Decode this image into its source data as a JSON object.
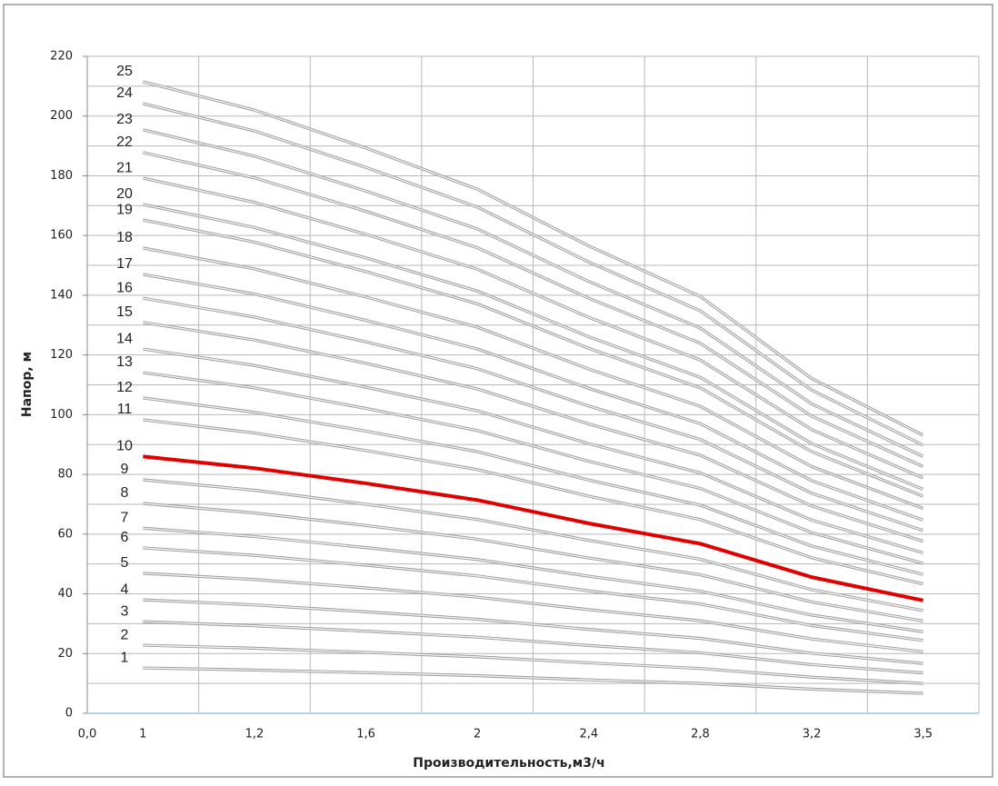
{
  "chart_data": {
    "type": "line",
    "x_label": "Производительность,м3/ч",
    "y_label": "Напор, м",
    "x_origin_label": "0,0",
    "categories": [
      "1",
      "1,2",
      "1,6",
      "2",
      "2,4",
      "2,8",
      "3,2",
      "3,5"
    ],
    "ylim": [
      0,
      220
    ],
    "yticks": [
      0,
      20,
      40,
      60,
      80,
      100,
      120,
      140,
      160,
      180,
      200,
      220
    ],
    "yminorticks": [
      10,
      30,
      50,
      70,
      90,
      110,
      130,
      150,
      170,
      190,
      210
    ],
    "grid": true,
    "series": [
      {
        "name": "1",
        "color": "#9a9a9a",
        "values": [
          15.2,
          14.5,
          13.6,
          12.6,
          11.2,
          10.0,
          8.1,
          6.7
        ]
      },
      {
        "name": "2",
        "color": "#9a9a9a",
        "values": [
          22.8,
          21.8,
          20.4,
          18.9,
          16.9,
          15.0,
          12.1,
          10.0
        ]
      },
      {
        "name": "3",
        "color": "#9a9a9a",
        "values": [
          30.7,
          29.3,
          27.5,
          25.5,
          22.7,
          20.3,
          16.3,
          13.5
        ]
      },
      {
        "name": "4",
        "color": "#9a9a9a",
        "values": [
          38.0,
          36.3,
          34.0,
          31.5,
          28.1,
          25.1,
          20.1,
          16.7
        ]
      },
      {
        "name": "5",
        "color": "#9a9a9a",
        "values": [
          46.9,
          44.8,
          42.0,
          38.9,
          34.7,
          31.0,
          24.9,
          20.6
        ]
      },
      {
        "name": "6",
        "color": "#9a9a9a",
        "values": [
          55.4,
          52.9,
          49.6,
          46.0,
          41.0,
          36.6,
          29.4,
          24.4
        ]
      },
      {
        "name": "7",
        "color": "#9a9a9a",
        "values": [
          62.0,
          59.2,
          55.5,
          51.5,
          45.9,
          40.9,
          32.9,
          27.3
        ]
      },
      {
        "name": "8",
        "color": "#9a9a9a",
        "values": [
          70.3,
          67.1,
          62.9,
          58.3,
          52.0,
          46.4,
          37.3,
          30.9
        ]
      },
      {
        "name": "9",
        "color": "#9a9a9a",
        "values": [
          78.2,
          74.7,
          70.0,
          64.9,
          57.9,
          51.6,
          41.4,
          34.4
        ]
      },
      {
        "name": "10",
        "color": "#e00000",
        "values": [
          86.0,
          82.1,
          77.0,
          71.4,
          63.6,
          56.8,
          45.6,
          37.8
        ]
      },
      {
        "name": "11",
        "color": "#9a9a9a",
        "values": [
          98.3,
          93.9,
          88.0,
          81.6,
          72.7,
          64.9,
          52.1,
          43.3
        ]
      },
      {
        "name": "12",
        "color": "#9a9a9a",
        "values": [
          105.6,
          100.8,
          94.5,
          87.6,
          78.1,
          69.7,
          56.0,
          46.5
        ]
      },
      {
        "name": "13",
        "color": "#9a9a9a",
        "values": [
          114.1,
          109.0,
          102.1,
          94.7,
          84.4,
          75.3,
          60.5,
          50.2
        ]
      },
      {
        "name": "14",
        "color": "#9a9a9a",
        "values": [
          122.0,
          116.5,
          109.2,
          101.3,
          90.3,
          80.5,
          64.7,
          53.7
        ]
      },
      {
        "name": "15",
        "color": "#9a9a9a",
        "values": [
          130.9,
          125.0,
          117.2,
          108.6,
          96.9,
          86.4,
          69.4,
          57.6
        ]
      },
      {
        "name": "16",
        "color": "#9a9a9a",
        "values": [
          139.0,
          132.7,
          124.4,
          115.4,
          102.9,
          91.7,
          73.7,
          61.2
        ]
      },
      {
        "name": "17",
        "color": "#9a9a9a",
        "values": [
          147.0,
          140.4,
          131.6,
          122.0,
          108.8,
          97.0,
          77.9,
          64.7
        ]
      },
      {
        "name": "18",
        "color": "#9a9a9a",
        "values": [
          155.8,
          148.8,
          139.4,
          129.3,
          115.3,
          102.8,
          82.6,
          68.6
        ]
      },
      {
        "name": "19",
        "color": "#9a9a9a",
        "values": [
          165.2,
          157.8,
          147.9,
          137.1,
          122.2,
          109.0,
          87.6,
          72.7
        ]
      },
      {
        "name": "20",
        "color": "#9a9a9a",
        "values": [
          170.4,
          162.7,
          152.5,
          141.4,
          126.1,
          112.5,
          90.3,
          75.0
        ]
      },
      {
        "name": "21",
        "color": "#9a9a9a",
        "values": [
          179.2,
          171.1,
          160.4,
          148.7,
          132.6,
          118.3,
          95.0,
          78.8
        ]
      },
      {
        "name": "22",
        "color": "#9a9a9a",
        "values": [
          187.8,
          179.3,
          168.1,
          155.9,
          139.0,
          123.9,
          99.5,
          82.6
        ]
      },
      {
        "name": "23",
        "color": "#9a9a9a",
        "values": [
          195.4,
          186.6,
          174.9,
          162.2,
          144.6,
          129.0,
          103.6,
          86.0
        ]
      },
      {
        "name": "24",
        "color": "#9a9a9a",
        "values": [
          204.2,
          195.0,
          182.8,
          169.5,
          151.1,
          134.8,
          108.2,
          89.8
        ]
      },
      {
        "name": "25",
        "color": "#9a9a9a",
        "values": [
          211.5,
          202.0,
          189.3,
          175.5,
          156.5,
          139.6,
          112.1,
          93.1
        ]
      }
    ]
  }
}
